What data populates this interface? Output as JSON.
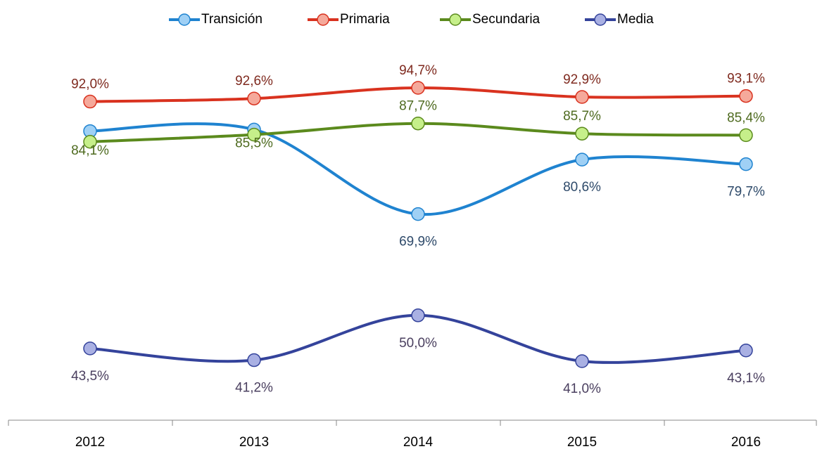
{
  "chart_data": {
    "type": "line",
    "categories": [
      "2012",
      "2013",
      "2014",
      "2015",
      "2016"
    ],
    "series": [
      {
        "name": "Transición",
        "color": "#1f83d0",
        "marker_color": "#9fd0f5",
        "label_color": "#2e4a6a",
        "values": [
          86.2,
          86.5,
          69.9,
          80.6,
          79.7
        ],
        "value_labels": [
          null,
          null,
          "69,9%",
          "80,6%",
          "79,7%"
        ]
      },
      {
        "name": "Primaria",
        "color": "#d9321f",
        "marker_color": "#f5a99b",
        "label_color": "#7f2a1f",
        "values": [
          92.0,
          92.6,
          94.7,
          92.9,
          93.1
        ],
        "value_labels": [
          "92,0%",
          "92,6%",
          "94,7%",
          "92,9%",
          "93,1%"
        ]
      },
      {
        "name": "Secundaria",
        "color": "#5b8a1d",
        "marker_color": "#c6ef8a",
        "label_color": "#4f6b20",
        "values": [
          84.1,
          85.5,
          87.7,
          85.7,
          85.4
        ],
        "value_labels": [
          "84,1%",
          "85,5%",
          "87,7%",
          "85,7%",
          "85,4%"
        ]
      },
      {
        "name": "Media",
        "color": "#34439b",
        "marker_color": "#a9b0e3",
        "label_color": "#4a3f5f",
        "values": [
          43.5,
          41.2,
          50.0,
          41.0,
          43.1
        ],
        "value_labels": [
          "43,5%",
          "41,2%",
          "50,0%",
          "41,0%",
          "43,1%"
        ]
      }
    ],
    "legend": "top",
    "grid": false
  }
}
